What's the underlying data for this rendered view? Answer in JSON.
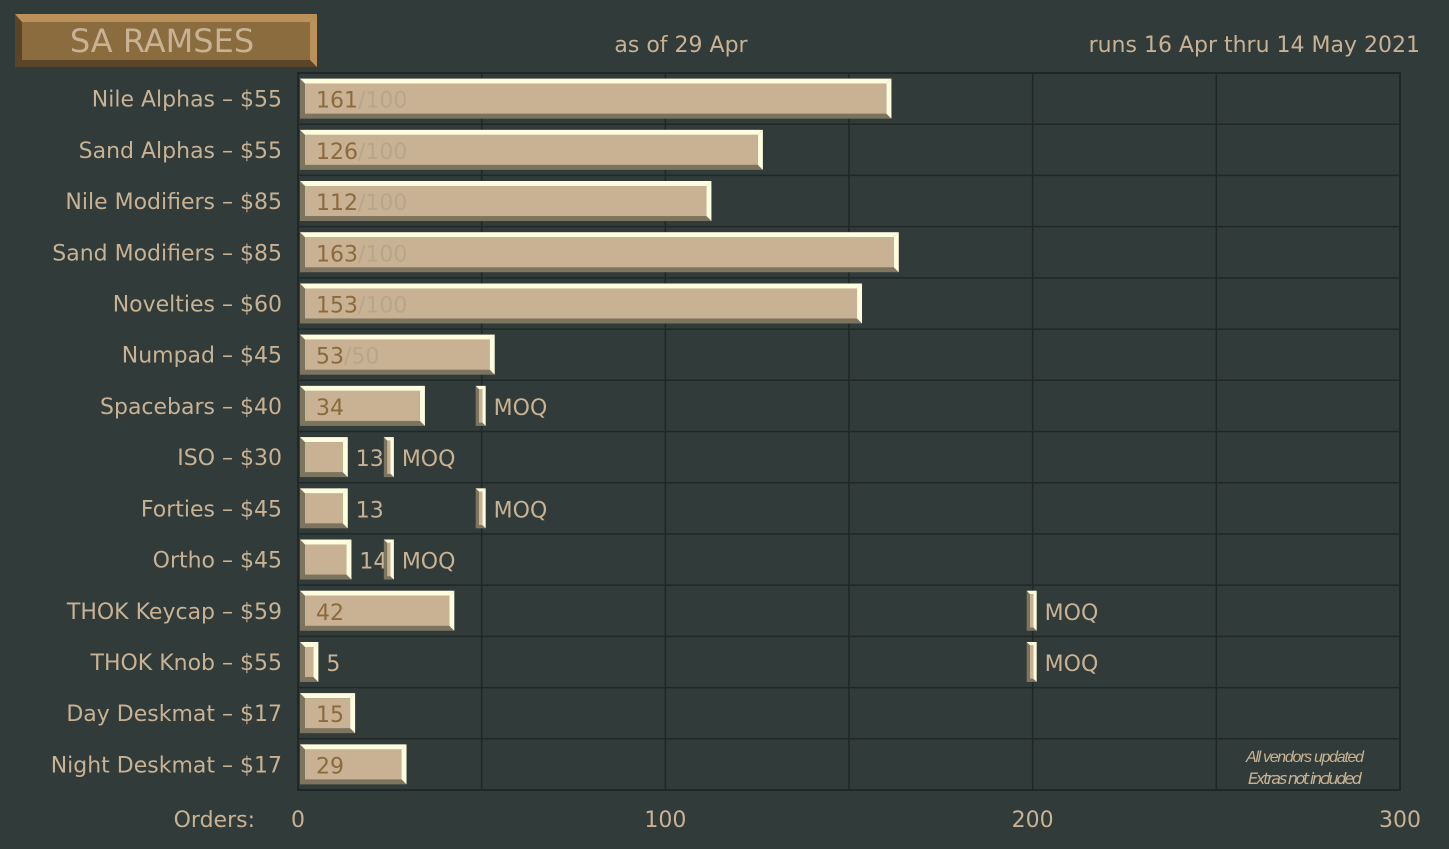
{
  "title": "SA RAMSES",
  "as_of": "as of 29 Apr",
  "runs": "runs 16 Apr thru 14 May 2021",
  "note_lines": [
    "All vendors updated",
    "Extras not included"
  ],
  "colors": {
    "background": "#303b3a",
    "bar": "#c8b293",
    "bar_highlight": "#fffde0",
    "bar_shadow": "#7d7460",
    "value_text": "#8b6a3e",
    "title_box": "#8a6c3f"
  },
  "chart_data": {
    "type": "bar",
    "orientation": "horizontal",
    "xlabel": "Orders:",
    "xlim": [
      0,
      300
    ],
    "xticks": [
      0,
      100,
      200,
      300
    ],
    "grid": true,
    "categories": [
      "Nile Alphas – $55",
      "Sand Alphas – $55",
      "Nile Modifiers – $85",
      "Sand Modifiers – $85",
      "Novelties – $60",
      "Numpad – $45",
      "Spacebars – $40",
      "ISO – $30",
      "Forties – $45",
      "Ortho – $45",
      "THOK Keycap – $59",
      "THOK Knob – $55",
      "Day Deskmat – $17",
      "Night Deskmat – $17"
    ],
    "values": [
      161,
      126,
      112,
      163,
      153,
      53,
      34,
      13,
      13,
      14,
      42,
      5,
      15,
      29
    ],
    "moq": [
      100,
      100,
      100,
      100,
      100,
      50,
      50,
      25,
      50,
      25,
      200,
      200,
      null,
      null
    ],
    "moq_met_label": "MOQ",
    "moq_marker_label": "MOQ"
  }
}
